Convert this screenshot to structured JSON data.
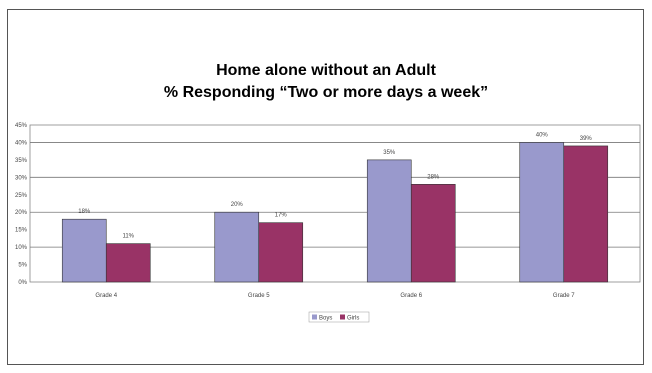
{
  "chart_data": {
    "type": "bar",
    "title": "Home alone without an Adult",
    "subtitle": "% Responding “Two or more days a week”",
    "categories": [
      "Grade 4",
      "Grade 5",
      "Grade 6",
      "Grade 7"
    ],
    "series": [
      {
        "name": "Boys",
        "values": [
          18,
          20,
          35,
          40
        ],
        "labels": [
          "18%",
          "20%",
          "35%",
          "40%"
        ],
        "color": "#9999cc"
      },
      {
        "name": "Girls",
        "values": [
          11,
          17,
          28,
          39
        ],
        "labels": [
          "11%",
          "17%",
          "28%",
          "39%"
        ],
        "color": "#993366"
      }
    ],
    "ylim": [
      0,
      45
    ],
    "yticks": [
      "0%",
      "5%",
      "10%",
      "15%",
      "20%",
      "25%",
      "30%",
      "35%",
      "40%",
      "45%"
    ],
    "grid": "horizontal at 10% steps",
    "legend_position": "bottom-center"
  }
}
